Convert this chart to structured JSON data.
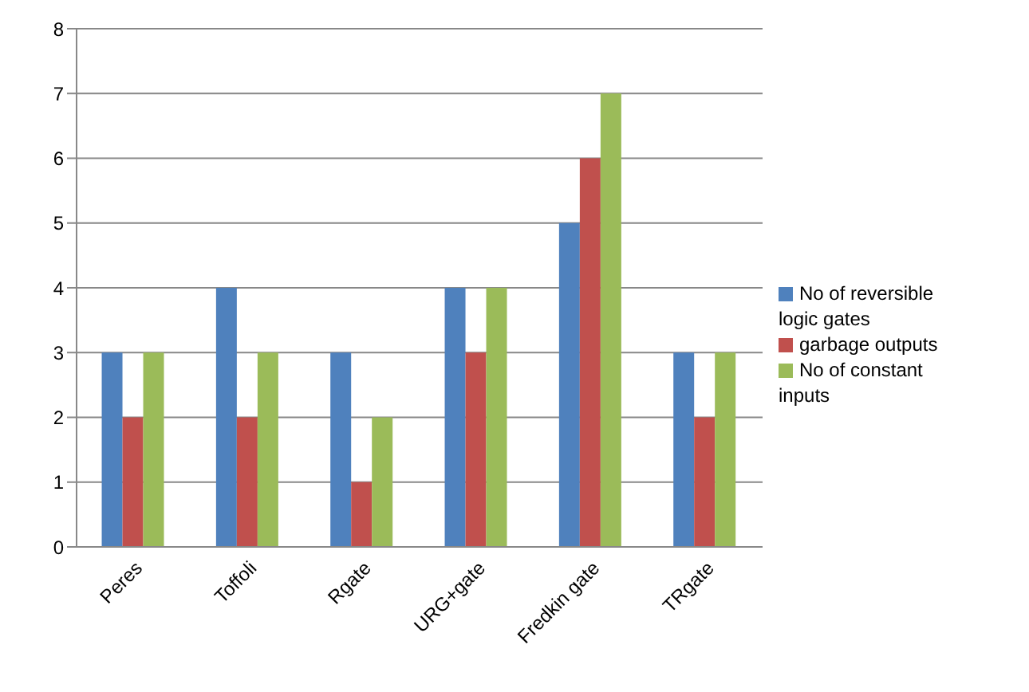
{
  "chart_data": {
    "type": "bar",
    "categories": [
      "Peres",
      "Toffoli",
      "Rgate",
      "URG+gate",
      "Fredkin gate",
      "TRgate"
    ],
    "series": [
      {
        "name": "No of reversible logic gates",
        "color": "#4f81bd",
        "values": [
          3,
          4,
          3,
          4,
          5,
          3
        ]
      },
      {
        "name": "garbage outputs",
        "color": "#c0504d",
        "values": [
          2,
          2,
          1,
          3,
          6,
          2
        ]
      },
      {
        "name": "No of constant inputs",
        "color": "#9bbb59",
        "values": [
          3,
          3,
          2,
          4,
          7,
          3
        ]
      }
    ],
    "ylim": [
      0,
      8
    ],
    "yticks": [
      0,
      1,
      2,
      3,
      4,
      5,
      6,
      7,
      8
    ],
    "grid": "y",
    "legend": "right"
  }
}
